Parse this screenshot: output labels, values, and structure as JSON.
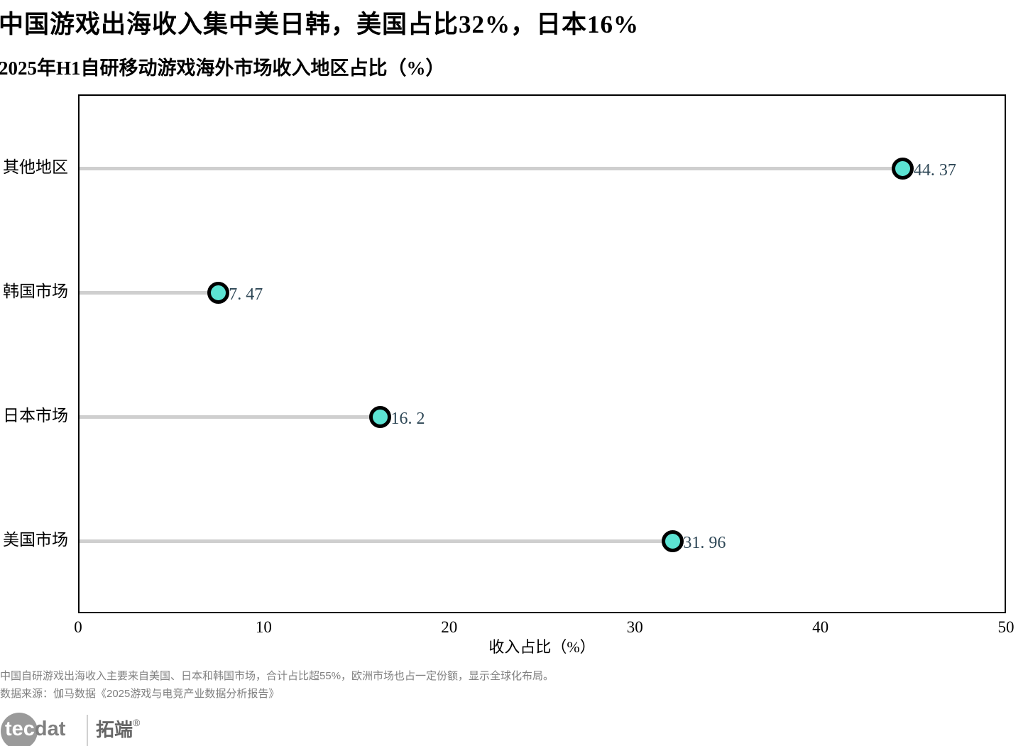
{
  "header": {
    "title": "中国游戏出海收入集中美日韩，美国占比32%，日本16%",
    "subtitle": "2025年H1自研移动游戏海外市场收入地区占比（%）"
  },
  "chart_data": {
    "type": "scatter",
    "variant": "horizontal-lollipop",
    "categories": [
      "其他地区",
      "韩国市场",
      "日本市场",
      "美国市场"
    ],
    "values": [
      44.37,
      7.47,
      16.2,
      31.96
    ],
    "value_labels": [
      "44. 37",
      "7. 47",
      "16. 2",
      "31. 96"
    ],
    "title": "2025年H1自研移动游戏海外市场收入地区占比（%）",
    "xlabel": "收入占比（%）",
    "ylabel": "",
    "xlim": [
      0,
      50
    ],
    "xticks": [
      0,
      10,
      20,
      30,
      40,
      50
    ],
    "grid": false,
    "legend": false,
    "colors": {
      "dot_fill": "#5CE3D3",
      "dot_border": "#000000",
      "stem": "#CFCFCF",
      "value_text": "#2E4756",
      "frame": "#000000"
    }
  },
  "footer": {
    "note": "中国自研游戏出海收入主要来自美国、日本和韩国市场，合计占比超55%，欧洲市场也占一定份额，显示全球化布局。",
    "source": "数据来源：伽马数据《2025游戏与电竞产业数据分析报告》"
  },
  "logo": {
    "circle_text": "tec",
    "suffix_text": "dat",
    "cn_text": "拓端",
    "registered_mark": "®"
  }
}
